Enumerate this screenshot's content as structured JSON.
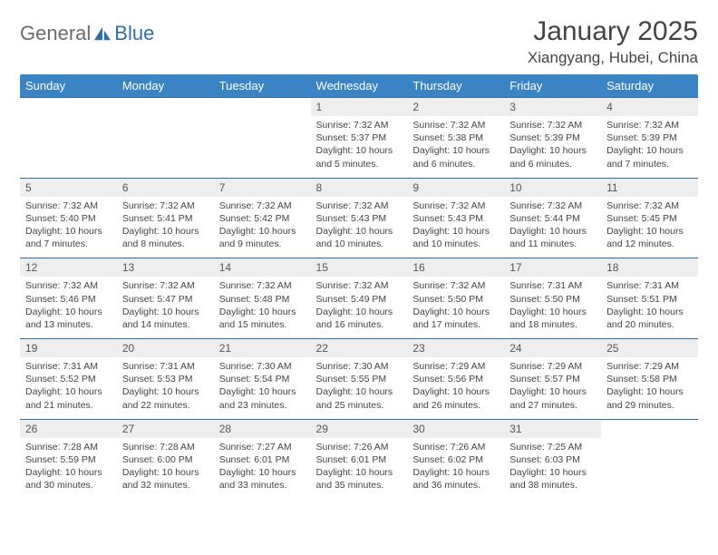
{
  "brand": {
    "part1": "General",
    "part2": "Blue"
  },
  "title": "January 2025",
  "location": "Xiangyang, Hubei, China",
  "colors": {
    "header_bg": "#3b84c4",
    "header_text": "#ffffff",
    "border": "#2f6fa8",
    "daynum_bg": "#eeeeee",
    "body_text": "#444444",
    "logo_gray": "#6b6b6b",
    "logo_blue": "#2f6fa8"
  },
  "day_headers": [
    "Sunday",
    "Monday",
    "Tuesday",
    "Wednesday",
    "Thursday",
    "Friday",
    "Saturday"
  ],
  "weeks": [
    [
      null,
      null,
      null,
      {
        "n": "1",
        "sr": "7:32 AM",
        "ss": "5:37 PM",
        "dl": "10 hours and 5 minutes."
      },
      {
        "n": "2",
        "sr": "7:32 AM",
        "ss": "5:38 PM",
        "dl": "10 hours and 6 minutes."
      },
      {
        "n": "3",
        "sr": "7:32 AM",
        "ss": "5:39 PM",
        "dl": "10 hours and 6 minutes."
      },
      {
        "n": "4",
        "sr": "7:32 AM",
        "ss": "5:39 PM",
        "dl": "10 hours and 7 minutes."
      }
    ],
    [
      {
        "n": "5",
        "sr": "7:32 AM",
        "ss": "5:40 PM",
        "dl": "10 hours and 7 minutes."
      },
      {
        "n": "6",
        "sr": "7:32 AM",
        "ss": "5:41 PM",
        "dl": "10 hours and 8 minutes."
      },
      {
        "n": "7",
        "sr": "7:32 AM",
        "ss": "5:42 PM",
        "dl": "10 hours and 9 minutes."
      },
      {
        "n": "8",
        "sr": "7:32 AM",
        "ss": "5:43 PM",
        "dl": "10 hours and 10 minutes."
      },
      {
        "n": "9",
        "sr": "7:32 AM",
        "ss": "5:43 PM",
        "dl": "10 hours and 10 minutes."
      },
      {
        "n": "10",
        "sr": "7:32 AM",
        "ss": "5:44 PM",
        "dl": "10 hours and 11 minutes."
      },
      {
        "n": "11",
        "sr": "7:32 AM",
        "ss": "5:45 PM",
        "dl": "10 hours and 12 minutes."
      }
    ],
    [
      {
        "n": "12",
        "sr": "7:32 AM",
        "ss": "5:46 PM",
        "dl": "10 hours and 13 minutes."
      },
      {
        "n": "13",
        "sr": "7:32 AM",
        "ss": "5:47 PM",
        "dl": "10 hours and 14 minutes."
      },
      {
        "n": "14",
        "sr": "7:32 AM",
        "ss": "5:48 PM",
        "dl": "10 hours and 15 minutes."
      },
      {
        "n": "15",
        "sr": "7:32 AM",
        "ss": "5:49 PM",
        "dl": "10 hours and 16 minutes."
      },
      {
        "n": "16",
        "sr": "7:32 AM",
        "ss": "5:50 PM",
        "dl": "10 hours and 17 minutes."
      },
      {
        "n": "17",
        "sr": "7:31 AM",
        "ss": "5:50 PM",
        "dl": "10 hours and 18 minutes."
      },
      {
        "n": "18",
        "sr": "7:31 AM",
        "ss": "5:51 PM",
        "dl": "10 hours and 20 minutes."
      }
    ],
    [
      {
        "n": "19",
        "sr": "7:31 AM",
        "ss": "5:52 PM",
        "dl": "10 hours and 21 minutes."
      },
      {
        "n": "20",
        "sr": "7:31 AM",
        "ss": "5:53 PM",
        "dl": "10 hours and 22 minutes."
      },
      {
        "n": "21",
        "sr": "7:30 AM",
        "ss": "5:54 PM",
        "dl": "10 hours and 23 minutes."
      },
      {
        "n": "22",
        "sr": "7:30 AM",
        "ss": "5:55 PM",
        "dl": "10 hours and 25 minutes."
      },
      {
        "n": "23",
        "sr": "7:29 AM",
        "ss": "5:56 PM",
        "dl": "10 hours and 26 minutes."
      },
      {
        "n": "24",
        "sr": "7:29 AM",
        "ss": "5:57 PM",
        "dl": "10 hours and 27 minutes."
      },
      {
        "n": "25",
        "sr": "7:29 AM",
        "ss": "5:58 PM",
        "dl": "10 hours and 29 minutes."
      }
    ],
    [
      {
        "n": "26",
        "sr": "7:28 AM",
        "ss": "5:59 PM",
        "dl": "10 hours and 30 minutes."
      },
      {
        "n": "27",
        "sr": "7:28 AM",
        "ss": "6:00 PM",
        "dl": "10 hours and 32 minutes."
      },
      {
        "n": "28",
        "sr": "7:27 AM",
        "ss": "6:01 PM",
        "dl": "10 hours and 33 minutes."
      },
      {
        "n": "29",
        "sr": "7:26 AM",
        "ss": "6:01 PM",
        "dl": "10 hours and 35 minutes."
      },
      {
        "n": "30",
        "sr": "7:26 AM",
        "ss": "6:02 PM",
        "dl": "10 hours and 36 minutes."
      },
      {
        "n": "31",
        "sr": "7:25 AM",
        "ss": "6:03 PM",
        "dl": "10 hours and 38 minutes."
      },
      null
    ]
  ],
  "labels": {
    "sunrise": "Sunrise:",
    "sunset": "Sunset:",
    "daylight": "Daylight:"
  }
}
